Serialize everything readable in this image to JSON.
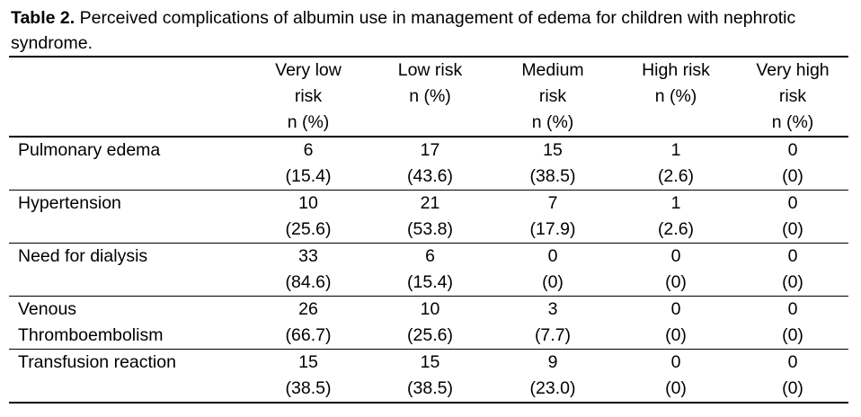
{
  "caption": {
    "label": "Table 2.",
    "text": " Perceived complications of albumin use in management of edema for children with nephrotic syndrome."
  },
  "columns": [
    {
      "lines": [
        "Very low",
        "risk",
        "n (%)"
      ]
    },
    {
      "lines": [
        "Low risk",
        "n (%)"
      ]
    },
    {
      "lines": [
        "Medium",
        "risk",
        "n (%)"
      ]
    },
    {
      "lines": [
        "High risk",
        "n (%)"
      ]
    },
    {
      "lines": [
        "Very high",
        "risk",
        "n (%)"
      ]
    }
  ],
  "rows": [
    {
      "label": [
        "Pulmonary edema"
      ],
      "cells": [
        {
          "n": "6",
          "pct": "(15.4)",
          "bold": false
        },
        {
          "n": "17",
          "pct": "(43.6)",
          "bold": true
        },
        {
          "n": "15",
          "pct": "(38.5)",
          "bold": false
        },
        {
          "n": "1",
          "pct": "(2.6)",
          "bold": false
        },
        {
          "n": "0",
          "pct": "(0)",
          "bold": false
        }
      ]
    },
    {
      "label": [
        "Hypertension"
      ],
      "cells": [
        {
          "n": "10",
          "pct": "(25.6)",
          "bold": false
        },
        {
          "n": "21",
          "pct": "(53.8)",
          "bold": true
        },
        {
          "n": "7",
          "pct": "(17.9)",
          "bold": false
        },
        {
          "n": "1",
          "pct": "(2.6)",
          "bold": false
        },
        {
          "n": "0",
          "pct": "(0)",
          "bold": false
        }
      ]
    },
    {
      "label": [
        "Need for dialysis"
      ],
      "cells": [
        {
          "n": "33",
          "pct": "(84.6)",
          "bold": true
        },
        {
          "n": "6",
          "pct": "(15.4)",
          "bold": false
        },
        {
          "n": "0",
          "pct": "(0)",
          "bold": false
        },
        {
          "n": "0",
          "pct": "(0)",
          "bold": false
        },
        {
          "n": "0",
          "pct": "(0)",
          "bold": false
        }
      ]
    },
    {
      "label": [
        "Venous",
        "Thromboembolism"
      ],
      "cells": [
        {
          "n": "26",
          "pct": "(66.7)",
          "bold": true
        },
        {
          "n": "10",
          "pct": "(25.6)",
          "bold": false
        },
        {
          "n": "3",
          "pct": "(7.7)",
          "bold": false
        },
        {
          "n": "0",
          "pct": "(0)",
          "bold": false
        },
        {
          "n": "0",
          "pct": "(0)",
          "bold": false
        }
      ]
    },
    {
      "label": [
        "Transfusion reaction"
      ],
      "cells": [
        {
          "n": "15",
          "pct": "(38.5)",
          "bold": true
        },
        {
          "n": "15",
          "pct": "(38.5)",
          "bold": true
        },
        {
          "n": "9",
          "pct": "(23.0)",
          "bold": false
        },
        {
          "n": "0",
          "pct": "(0)",
          "bold": false
        },
        {
          "n": "0",
          "pct": "(0)",
          "bold": false
        }
      ]
    }
  ]
}
